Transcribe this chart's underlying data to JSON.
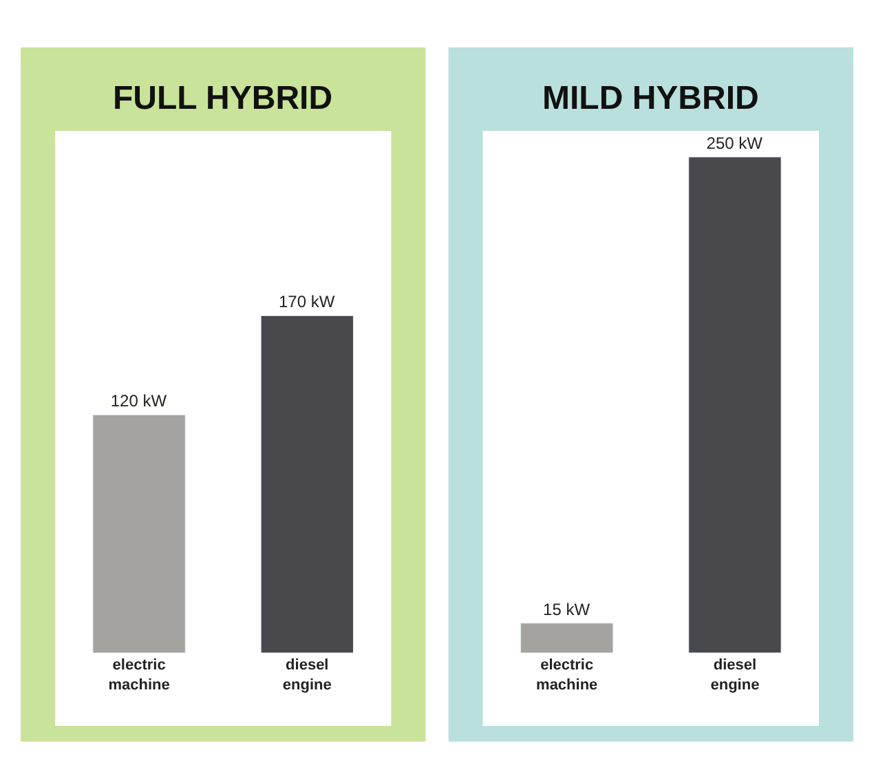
{
  "chart_data": [
    {
      "type": "bar",
      "title": "FULL HYBRID",
      "categories": [
        "electric machine",
        "diesel engine"
      ],
      "values": [
        120,
        170
      ],
      "value_labels": [
        "120 kW",
        "170 kW"
      ],
      "colors": [
        "#a4a3a0",
        "#48484d"
      ]
    },
    {
      "type": "bar",
      "title": "MILD HYBRID",
      "categories": [
        "electric machine",
        "diesel engine"
      ],
      "values": [
        15,
        250
      ],
      "value_labels": [
        "15 kW",
        "250 kW"
      ],
      "colors": [
        "#a4a3a0",
        "#48484d"
      ]
    }
  ]
}
